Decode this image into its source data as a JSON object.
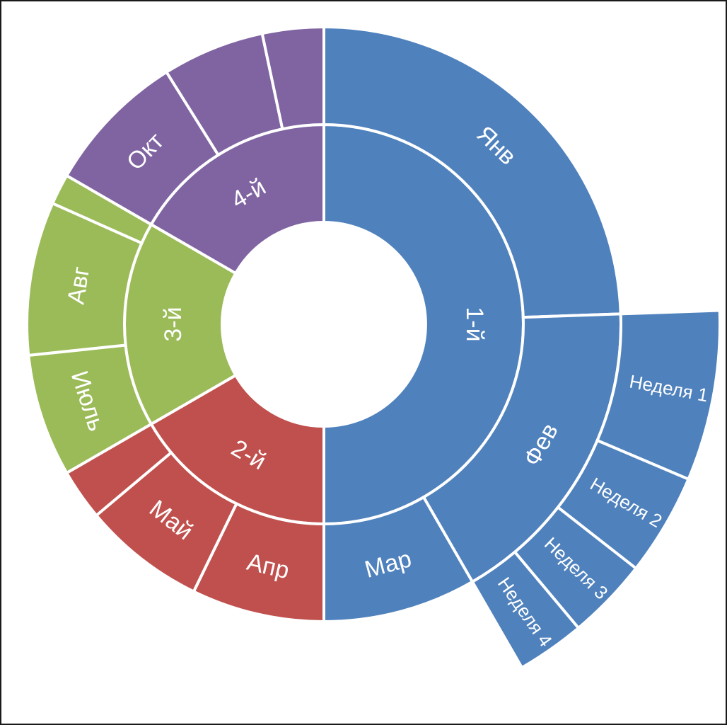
{
  "chart_data": {
    "type": "sunburst",
    "colors": {
      "1-й": "#4f81bd",
      "2-й": "#c0504d",
      "3-й": "#9bbb59",
      "4-й": "#8064a2"
    },
    "rings": {
      "quarters": [
        {
          "label": "1-й",
          "value": 180,
          "color": "#4f81bd"
        },
        {
          "label": "2-й",
          "value": 60,
          "color": "#c0504d"
        },
        {
          "label": "3-й",
          "value": 60,
          "color": "#9bbb59"
        },
        {
          "label": "4-й",
          "value": 60,
          "color": "#8064a2"
        }
      ],
      "months": [
        {
          "label": "Янв",
          "value": 88,
          "color": "#4f81bd",
          "parent": "1-й"
        },
        {
          "label": "Фев",
          "value": 62,
          "color": "#4f81bd",
          "parent": "1-й"
        },
        {
          "label": "Мар",
          "value": 30,
          "color": "#4f81bd",
          "parent": "1-й"
        },
        {
          "label": "Апр",
          "value": 26,
          "color": "#c0504d",
          "parent": "2-й"
        },
        {
          "label": "Май",
          "value": 24,
          "color": "#c0504d",
          "parent": "2-й"
        },
        {
          "label": "",
          "value": 10,
          "color": "#c0504d",
          "parent": "2-й"
        },
        {
          "label": "Июль",
          "value": 24,
          "color": "#9bbb59",
          "parent": "3-й"
        },
        {
          "label": "Авг",
          "value": 30,
          "color": "#9bbb59",
          "parent": "3-й"
        },
        {
          "label": "",
          "value": 6,
          "color": "#9bbb59",
          "parent": "3-й"
        },
        {
          "label": "Окт",
          "value": 28,
          "color": "#8064a2",
          "parent": "4-й"
        },
        {
          "label": "",
          "value": 20,
          "color": "#8064a2",
          "parent": "4-й"
        },
        {
          "label": "",
          "value": 12,
          "color": "#8064a2",
          "parent": "4-й"
        }
      ],
      "weeks": [
        {
          "label": "Неделя 1",
          "value": 25,
          "color": "#4f81bd",
          "parent": "Фев"
        },
        {
          "label": "Неделя 2",
          "value": 15,
          "color": "#4f81bd",
          "parent": "Фев"
        },
        {
          "label": "Неделя 3",
          "value": 12,
          "color": "#4f81bd",
          "parent": "Фев"
        },
        {
          "label": "Неделя 4",
          "value": 10,
          "color": "#4f81bd",
          "parent": "Фев"
        }
      ]
    }
  }
}
